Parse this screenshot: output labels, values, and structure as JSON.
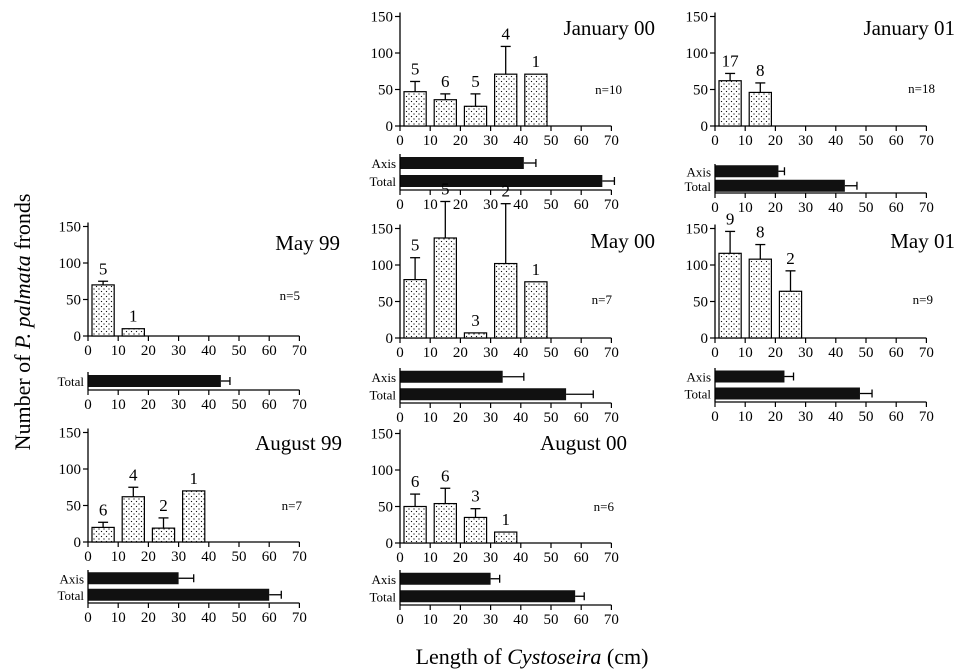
{
  "figure": {
    "ylabel_pre": "Number of ",
    "ylabel_italic": "P. palmata",
    "ylabel_post": " fronds",
    "xlabel_pre": "Length of ",
    "xlabel_italic": "Cystoseira",
    "xlabel_post": " (cm)"
  },
  "chart_data": [
    {
      "id": "jan00",
      "type": "bar",
      "title": "January 00",
      "n_label": "n=10",
      "xlim": [
        0,
        70
      ],
      "xticks": [
        0,
        10,
        20,
        30,
        40,
        50,
        60,
        70
      ],
      "ylim": [
        0,
        150
      ],
      "yticks": [
        0,
        50,
        100,
        150
      ],
      "bars": [
        {
          "x_start": 0,
          "x_end": 10,
          "value": 47,
          "error": 14,
          "count": "5"
        },
        {
          "x_start": 10,
          "x_end": 20,
          "value": 36,
          "error": 8,
          "count": "6"
        },
        {
          "x_start": 20,
          "x_end": 30,
          "value": 27,
          "error": 17,
          "count": "5"
        },
        {
          "x_start": 30,
          "x_end": 40,
          "value": 71,
          "error": 38,
          "count": "4"
        },
        {
          "x_start": 40,
          "x_end": 50,
          "value": 71,
          "error": 0,
          "count": "1"
        }
      ],
      "length_bars": [
        {
          "label": "Axis",
          "value": 41,
          "error": 4
        },
        {
          "label": "Total",
          "value": 67,
          "error": 4
        }
      ]
    },
    {
      "id": "jan01",
      "type": "bar",
      "title": "January 01",
      "n_label": "n=18",
      "xlim": [
        0,
        70
      ],
      "xticks": [
        0,
        10,
        20,
        30,
        40,
        50,
        60,
        70
      ],
      "ylim": [
        0,
        150
      ],
      "yticks": [
        0,
        50,
        100,
        150
      ],
      "bars": [
        {
          "x_start": 0,
          "x_end": 10,
          "value": 62,
          "error": 10,
          "count": "17"
        },
        {
          "x_start": 10,
          "x_end": 20,
          "value": 46,
          "error": 13,
          "count": "8"
        }
      ],
      "length_bars": [
        {
          "label": "Axis",
          "value": 21,
          "error": 2
        },
        {
          "label": "Total",
          "value": 43,
          "error": 4
        }
      ]
    },
    {
      "id": "may99",
      "type": "bar",
      "title": "May  99",
      "n_label": "n=5",
      "xlim": [
        0,
        70
      ],
      "xticks": [
        0,
        10,
        20,
        30,
        40,
        50,
        60,
        70
      ],
      "ylim": [
        0,
        150
      ],
      "yticks": [
        0,
        50,
        100,
        150
      ],
      "bars": [
        {
          "x_start": 0,
          "x_end": 10,
          "value": 70,
          "error": 5,
          "count": "5"
        },
        {
          "x_start": 10,
          "x_end": 20,
          "value": 10,
          "error": 0,
          "count": "1"
        }
      ],
      "length_bars": [
        {
          "label": "Total",
          "value": 44,
          "error": 3
        }
      ]
    },
    {
      "id": "may00",
      "type": "bar",
      "title": "May 00",
      "n_label": "n=7",
      "xlim": [
        0,
        70
      ],
      "xticks": [
        0,
        10,
        20,
        30,
        40,
        50,
        60,
        70
      ],
      "ylim": [
        0,
        150
      ],
      "yticks": [
        0,
        50,
        100,
        150
      ],
      "bars": [
        {
          "x_start": 0,
          "x_end": 10,
          "value": 80,
          "error": 30,
          "count": "5"
        },
        {
          "x_start": 10,
          "x_end": 20,
          "value": 137,
          "error": 50,
          "count": "5"
        },
        {
          "x_start": 20,
          "x_end": 30,
          "value": 7,
          "error": 0,
          "count": "3"
        },
        {
          "x_start": 30,
          "x_end": 40,
          "value": 102,
          "error": 82,
          "count": "2"
        },
        {
          "x_start": 40,
          "x_end": 50,
          "value": 77,
          "error": 0,
          "count": "1"
        }
      ],
      "length_bars": [
        {
          "label": "Axis",
          "value": 34,
          "error": 7
        },
        {
          "label": "Total",
          "value": 55,
          "error": 9
        }
      ]
    },
    {
      "id": "may01",
      "type": "bar",
      "title": "May 01",
      "n_label": "n=9",
      "xlim": [
        0,
        70
      ],
      "xticks": [
        0,
        10,
        20,
        30,
        40,
        50,
        60,
        70
      ],
      "ylim": [
        0,
        150
      ],
      "yticks": [
        0,
        50,
        100,
        150
      ],
      "bars": [
        {
          "x_start": 0,
          "x_end": 10,
          "value": 116,
          "error": 30,
          "count": "9"
        },
        {
          "x_start": 10,
          "x_end": 20,
          "value": 108,
          "error": 20,
          "count": "8"
        },
        {
          "x_start": 20,
          "x_end": 30,
          "value": 64,
          "error": 28,
          "count": "2"
        }
      ],
      "length_bars": [
        {
          "label": "Axis",
          "value": 23,
          "error": 3
        },
        {
          "label": "Total",
          "value": 48,
          "error": 4
        }
      ]
    },
    {
      "id": "aug99",
      "type": "bar",
      "title": "August 99",
      "n_label": "n=7",
      "xlim": [
        0,
        70
      ],
      "xticks": [
        0,
        10,
        20,
        30,
        40,
        50,
        60,
        70
      ],
      "ylim": [
        0,
        150
      ],
      "yticks": [
        0,
        50,
        100,
        150
      ],
      "bars": [
        {
          "x_start": 0,
          "x_end": 10,
          "value": 20,
          "error": 7,
          "count": "6"
        },
        {
          "x_start": 10,
          "x_end": 20,
          "value": 62,
          "error": 13,
          "count": "4"
        },
        {
          "x_start": 20,
          "x_end": 30,
          "value": 19,
          "error": 14,
          "count": "2"
        },
        {
          "x_start": 30,
          "x_end": 40,
          "value": 70,
          "error": 0,
          "count": "1"
        }
      ],
      "length_bars": [
        {
          "label": "Axis",
          "value": 30,
          "error": 5
        },
        {
          "label": "Total",
          "value": 60,
          "error": 4
        }
      ]
    },
    {
      "id": "aug00",
      "type": "bar",
      "title": "August 00",
      "n_label": "n=6",
      "xlim": [
        0,
        70
      ],
      "xticks": [
        0,
        10,
        20,
        30,
        40,
        50,
        60,
        70
      ],
      "ylim": [
        0,
        150
      ],
      "yticks": [
        0,
        50,
        100,
        150
      ],
      "bars": [
        {
          "x_start": 0,
          "x_end": 10,
          "value": 50,
          "error": 17,
          "count": "6"
        },
        {
          "x_start": 10,
          "x_end": 20,
          "value": 54,
          "error": 21,
          "count": "6"
        },
        {
          "x_start": 20,
          "x_end": 30,
          "value": 35,
          "error": 12,
          "count": "3"
        },
        {
          "x_start": 30,
          "x_end": 40,
          "value": 15,
          "error": 0,
          "count": "1"
        }
      ],
      "length_bars": [
        {
          "label": "Axis",
          "value": 30,
          "error": 3
        },
        {
          "label": "Total",
          "value": 58,
          "error": 3
        }
      ]
    }
  ]
}
